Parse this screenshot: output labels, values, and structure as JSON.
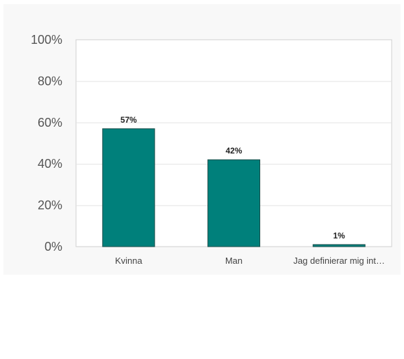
{
  "chart_data": {
    "type": "bar",
    "categories": [
      "Kvinna",
      "Man",
      "Jag definierar mig int…"
    ],
    "values": [
      57,
      42,
      1
    ],
    "data_labels": [
      "57%",
      "42%",
      "1%"
    ],
    "yticks": [
      0,
      20,
      40,
      60,
      80,
      100
    ],
    "ytick_labels": [
      "0%",
      "20%",
      "40%",
      "60%",
      "80%",
      "100%"
    ],
    "ylim": [
      0,
      100
    ],
    "grid": true,
    "title": "",
    "xlabel": "",
    "ylabel": "",
    "colors": {
      "bar": "#00807b",
      "bar_edge": "#1d4d4a",
      "grid": "#e3e3e3",
      "axis": "#cfcfcf",
      "plot_bg": "#ffffff",
      "panel_bg": "#f8f8f8"
    }
  }
}
